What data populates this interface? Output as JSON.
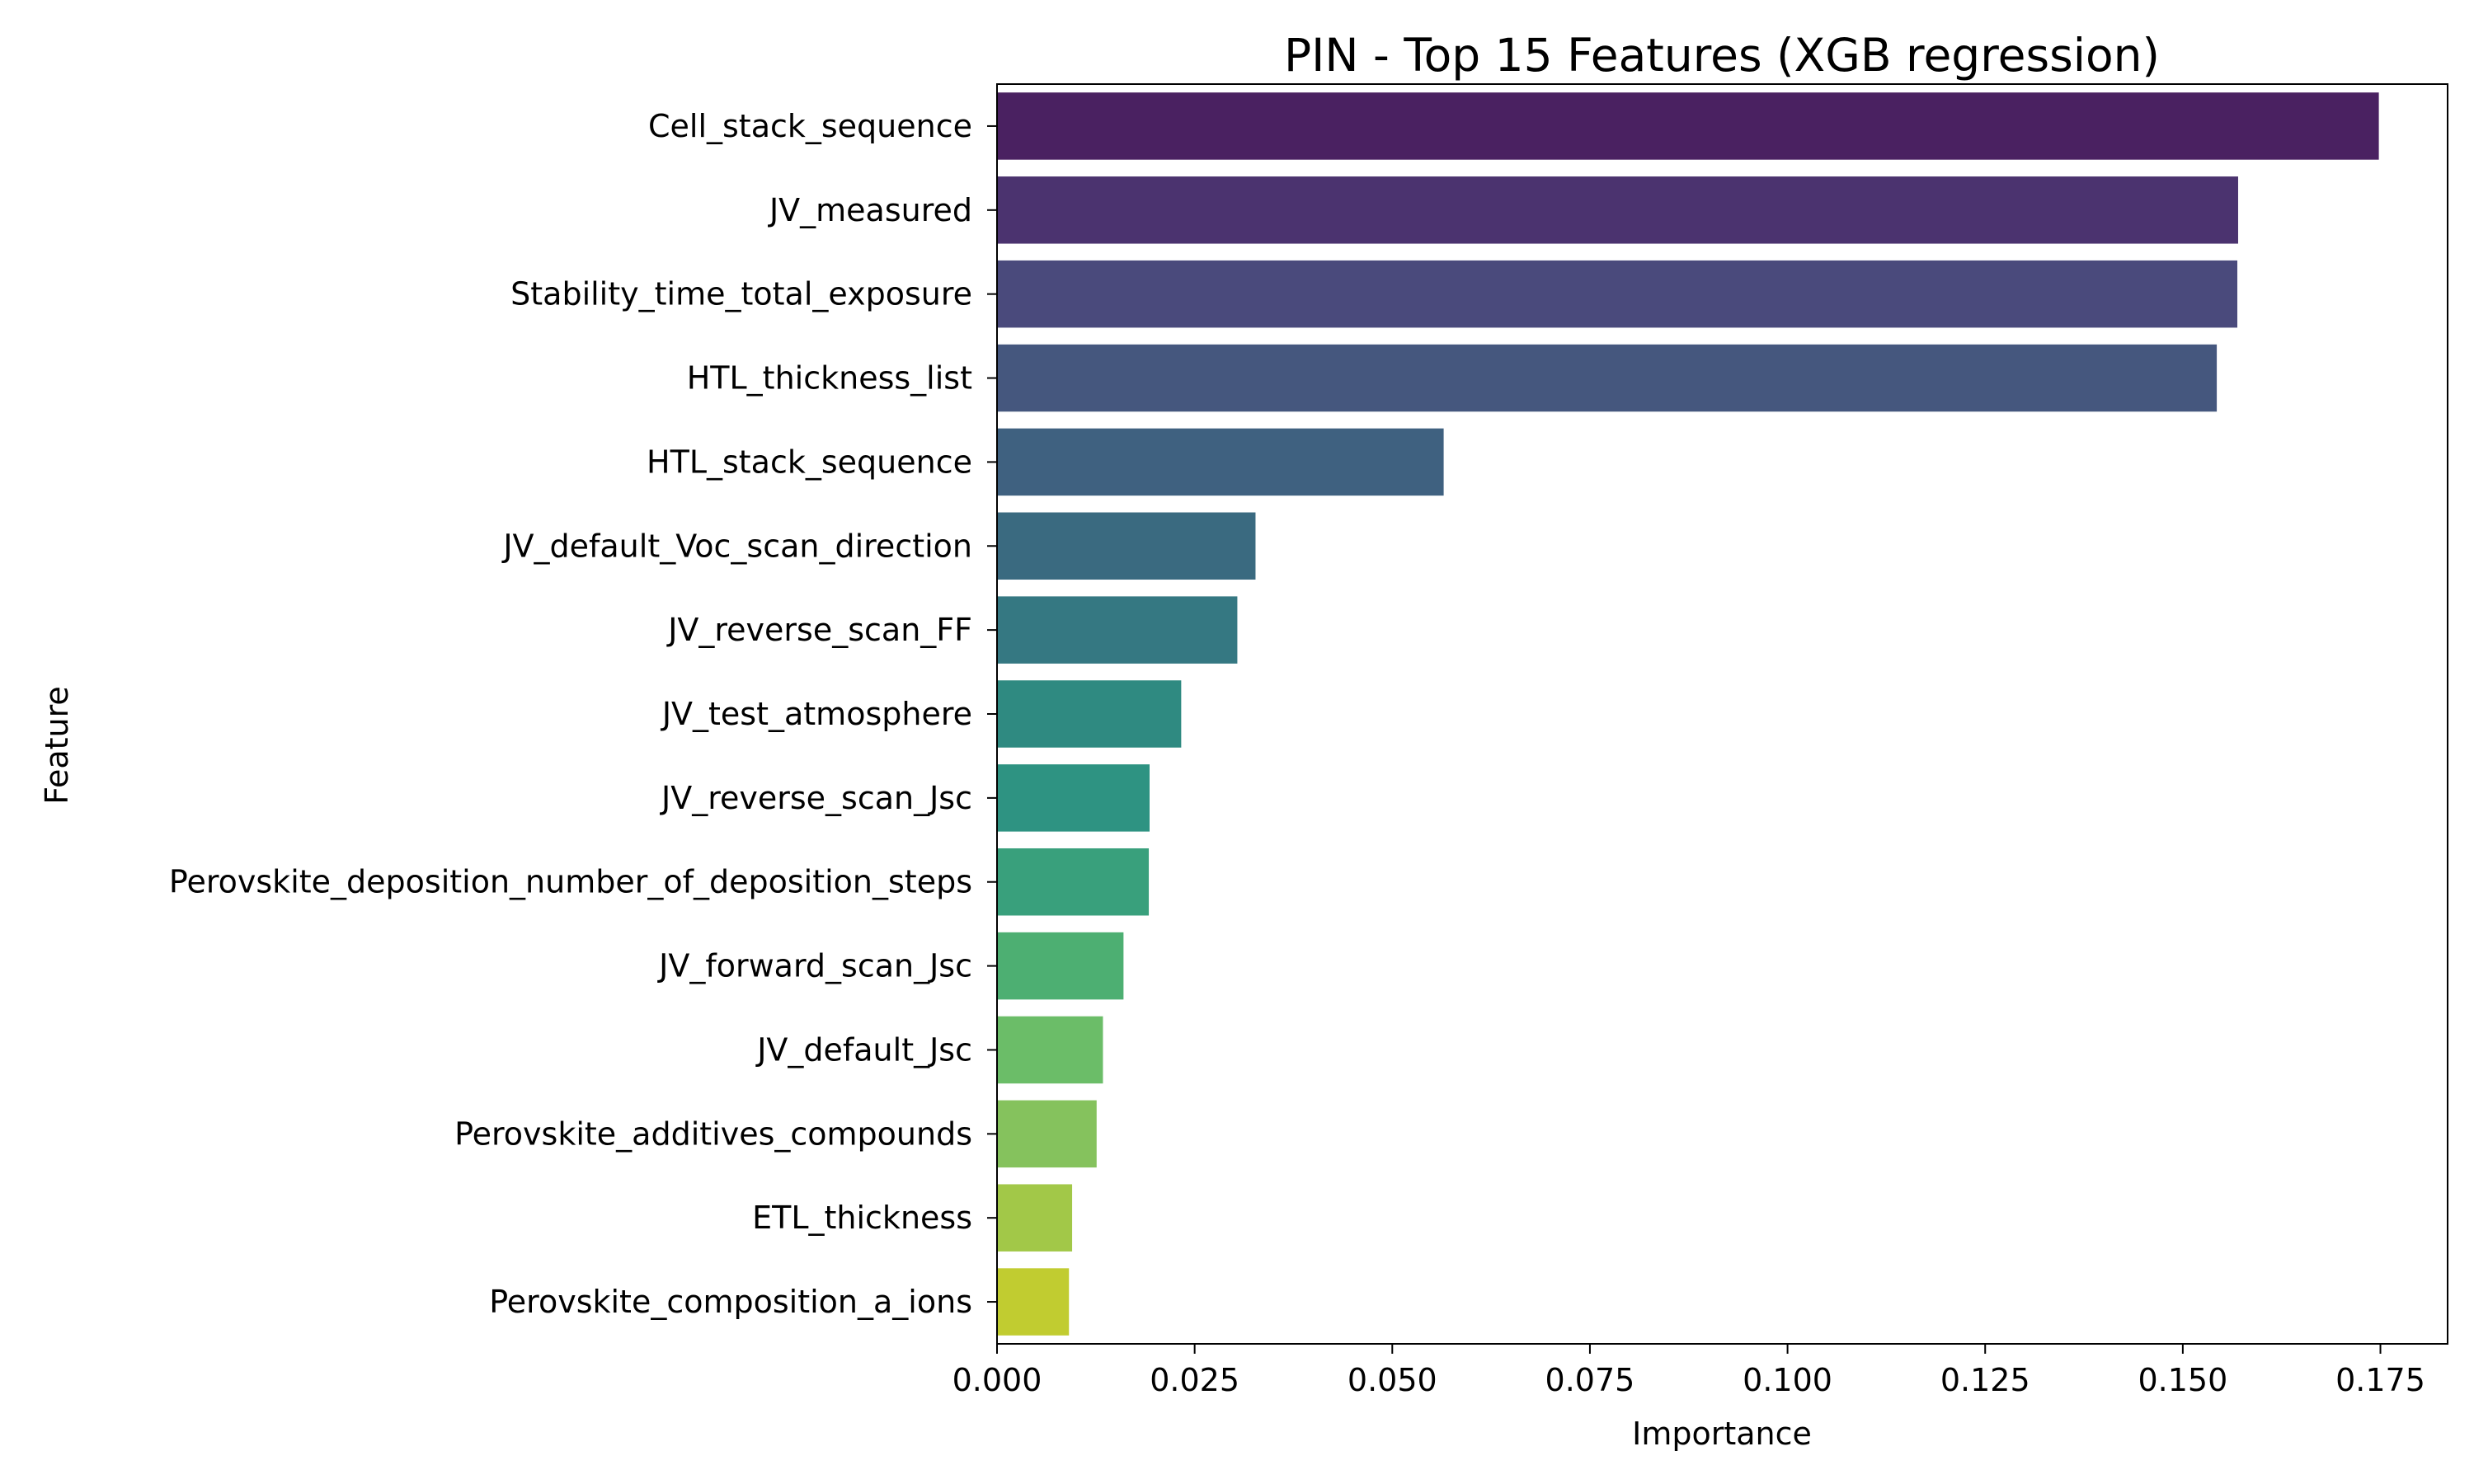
{
  "chart_data": {
    "type": "bar",
    "orientation": "horizontal",
    "title": "PIN - Top 15 Features (XGB regression)",
    "xlabel": "Importance",
    "ylabel": "Feature",
    "xlim": [
      0,
      0.1835
    ],
    "xticks": [
      "0.000",
      "0.025",
      "0.050",
      "0.075",
      "0.100",
      "0.125",
      "0.150",
      "0.175"
    ],
    "grid": false,
    "palette": "viridis",
    "categories": [
      "Cell_stack_sequence",
      "JV_measured",
      "Stability_time_total_exposure",
      "HTL_thickness_list",
      "HTL_stack_sequence",
      "JV_default_Voc_scan_direction",
      "JV_reverse_scan_FF",
      "JV_test_atmosphere",
      "JV_reverse_scan_Jsc",
      "Perovskite_deposition_number_of_deposition_steps",
      "JV_forward_scan_Jsc",
      "JV_default_Jsc",
      "Perovskite_additives_compounds",
      "ETL_thickness",
      "Perovskite_composition_a_ions"
    ],
    "values": [
      0.1748,
      0.157,
      0.1569,
      0.1543,
      0.0565,
      0.0327,
      0.0304,
      0.0233,
      0.0193,
      0.0192,
      0.016,
      0.0134,
      0.0126,
      0.0095,
      0.0091
    ],
    "colors": [
      "#4a2161",
      "#4b336f",
      "#4a4a7c",
      "#45577e",
      "#3f6180",
      "#3a6a80",
      "#357882",
      "#2f8a81",
      "#2e9382",
      "#39a07c",
      "#4daf72",
      "#6bbd68",
      "#85c25d",
      "#a2c848",
      "#c1cc30"
    ]
  }
}
